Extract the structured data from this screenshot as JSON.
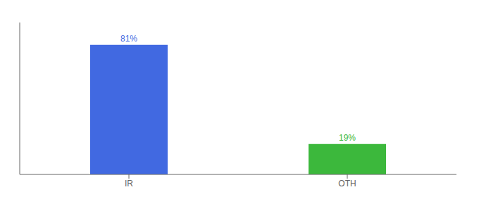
{
  "chart_data": {
    "type": "bar",
    "categories": [
      "IR",
      "OTH"
    ],
    "values": [
      81,
      19
    ],
    "value_labels": [
      "81%",
      "19%"
    ],
    "colors": [
      "#4169e1",
      "#3cb83c"
    ],
    "ylim": [
      0,
      95
    ],
    "data_labels": true,
    "tick_labels": "x",
    "grid": false
  }
}
